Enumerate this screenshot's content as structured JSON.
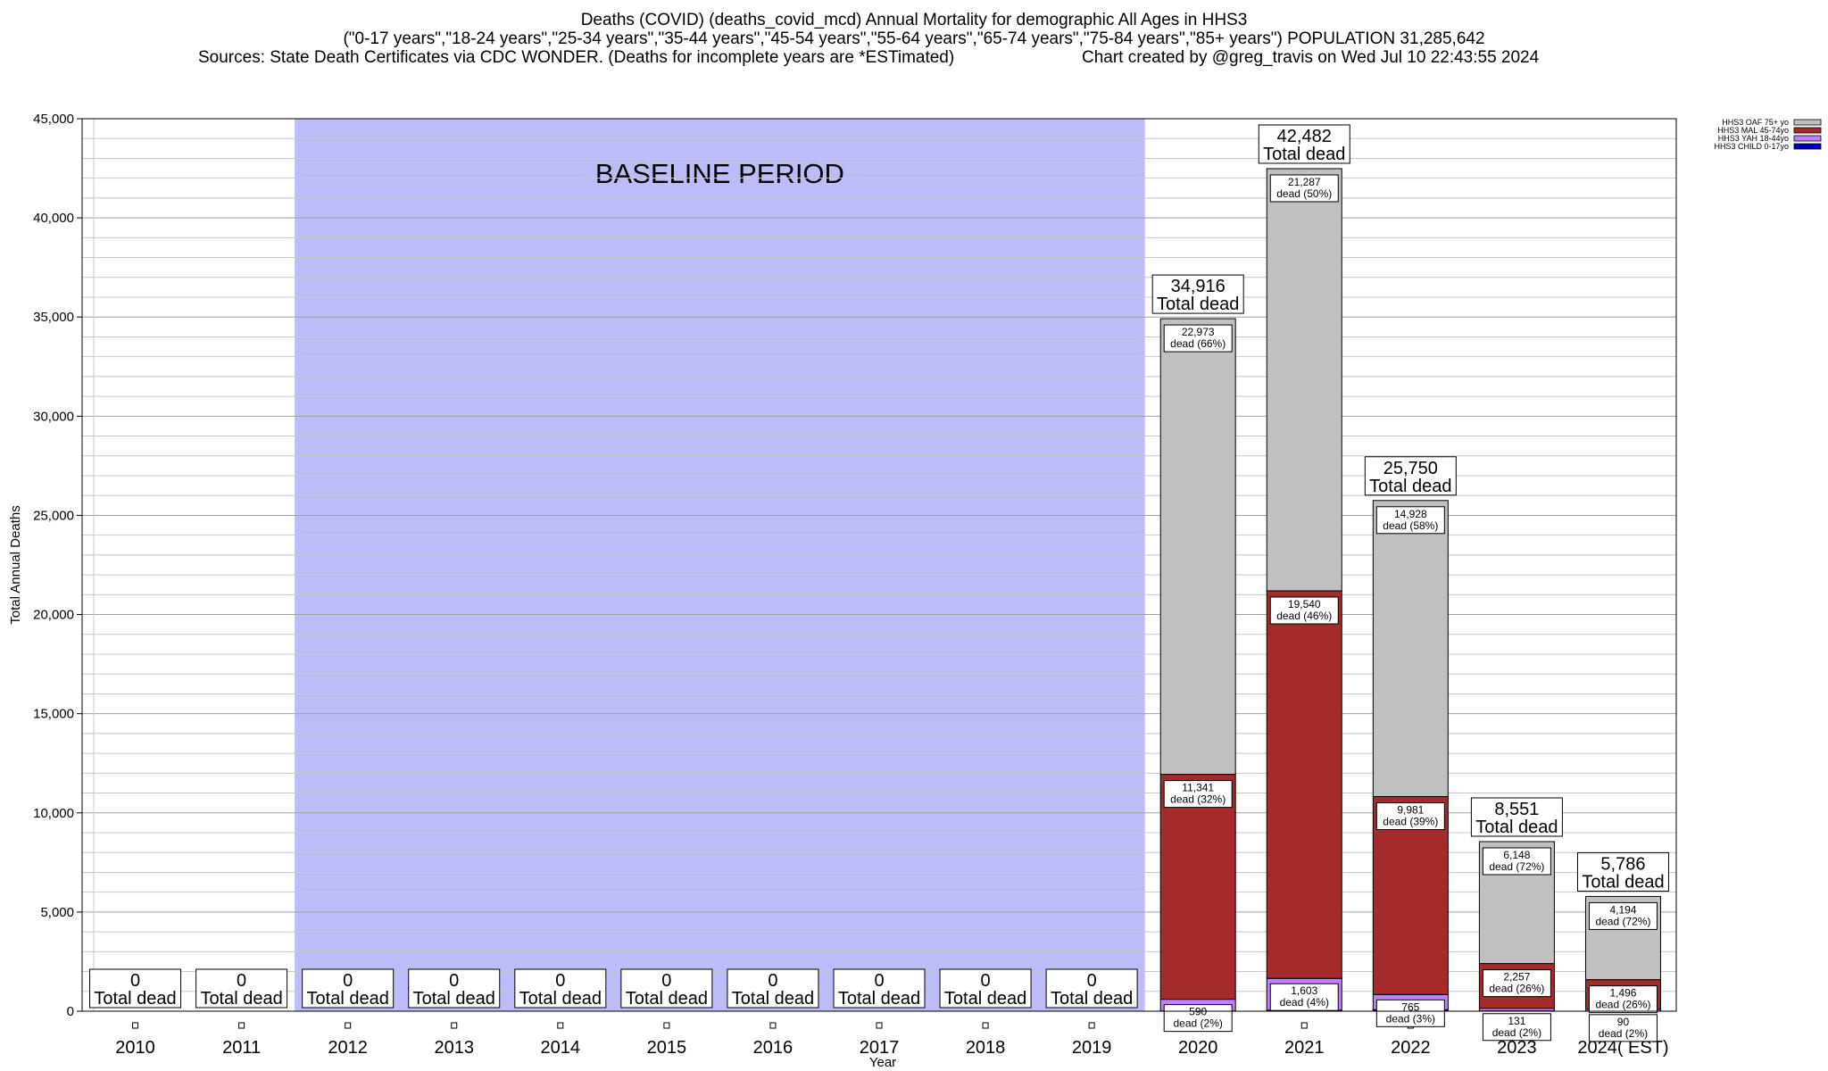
{
  "title": {
    "line1": "Deaths (COVID) (deaths_covid_mcd) Annual Mortality for demographic All Ages in HHS3",
    "line2": "(\"0-17 years\",\"18-24 years\",\"25-34 years\",\"35-44 years\",\"45-54 years\",\"55-64 years\",\"65-74 years\",\"75-84 years\",\"85+ years\") POPULATION 31,285,642",
    "sources": "Sources: State Death Certificates via CDC WONDER. (Deaths for incomplete years are *ESTimated)",
    "created": "Chart created by @greg_travis on Wed Jul 10 22:43:55 2024"
  },
  "chart_data": {
    "type": "bar",
    "stacked": true,
    "ylabel": "Total Annual Deaths",
    "xlabel": "Year",
    "ylim": [
      0,
      45000
    ],
    "y_ticks": [
      "0",
      "5,000",
      "10,000",
      "15,000",
      "20,000",
      "25,000",
      "30,000",
      "35,000",
      "40,000",
      "45,000"
    ],
    "y_tick_values": [
      0,
      5000,
      10000,
      15000,
      20000,
      25000,
      30000,
      35000,
      40000,
      45000
    ],
    "grid": true,
    "legend_position": "top-right",
    "baseline_label": "BASELINE PERIOD",
    "baseline_range": [
      "2012",
      "2019"
    ],
    "baseline_color": "#bcbcf8",
    "total_label_suffix": "Total dead",
    "categories": [
      "2010",
      "2011",
      "2012",
      "2013",
      "2014",
      "2015",
      "2016",
      "2017",
      "2018",
      "2019",
      "2020",
      "2021",
      "2022",
      "2023",
      "2024( EST)"
    ],
    "totals": [
      "0",
      "0",
      "0",
      "0",
      "0",
      "0",
      "0",
      "0",
      "0",
      "0",
      "34,916",
      "42,482",
      "25,750",
      "8,551",
      "5,786"
    ],
    "series": [
      {
        "name": "HHS3 CHILD 0-17yo",
        "color": "#0000c0",
        "values": [
          0,
          0,
          0,
          0,
          0,
          0,
          0,
          0,
          0,
          0,
          12,
          52,
          76,
          15,
          6
        ]
      },
      {
        "name": "HHS3 YAH 18-44yo",
        "color": "#c080ff",
        "values": [
          0,
          0,
          0,
          0,
          0,
          0,
          0,
          0,
          0,
          0,
          590,
          1603,
          765,
          131,
          90
        ]
      },
      {
        "name": "HHS3 MAL 45-74yo",
        "color": "#a52a2a",
        "values": [
          0,
          0,
          0,
          0,
          0,
          0,
          0,
          0,
          0,
          0,
          11341,
          19540,
          9981,
          2257,
          1496
        ]
      },
      {
        "name": "HHS3 OAF 75+ yo",
        "color": "#c0c0c0",
        "values": [
          0,
          0,
          0,
          0,
          0,
          0,
          0,
          0,
          0,
          0,
          22973,
          21287,
          14928,
          6148,
          4194
        ]
      }
    ],
    "segment_labels": {
      "2020": [
        {
          "num": "",
          "pct": ""
        },
        {
          "num": "590",
          "pct": "dead (2%)"
        },
        {
          "num": "11,341",
          "pct": "dead (32%)"
        },
        {
          "num": "22,973",
          "pct": "dead (66%)"
        }
      ],
      "2021": [
        {
          "num": "",
          "pct": ""
        },
        {
          "num": "1,603",
          "pct": "dead (4%)"
        },
        {
          "num": "19,540",
          "pct": "dead (46%)"
        },
        {
          "num": "21,287",
          "pct": "dead (50%)"
        }
      ],
      "2022": [
        {
          "num": "",
          "pct": ""
        },
        {
          "num": "765",
          "pct": "dead (3%)"
        },
        {
          "num": "9,981",
          "pct": "dead (39%)"
        },
        {
          "num": "14,928",
          "pct": "dead (58%)"
        }
      ],
      "2023": [
        {
          "num": "",
          "pct": ""
        },
        {
          "num": "131",
          "pct": "dead (2%)"
        },
        {
          "num": "2,257",
          "pct": "dead (26%)"
        },
        {
          "num": "6,148",
          "pct": "dead (72%)"
        }
      ],
      "2024( EST)": [
        {
          "num": "",
          "pct": ""
        },
        {
          "num": "90",
          "pct": "dead (2%)"
        },
        {
          "num": "1,496",
          "pct": "dead (26%)"
        },
        {
          "num": "4,194",
          "pct": "dead (72%)"
        }
      ]
    }
  }
}
